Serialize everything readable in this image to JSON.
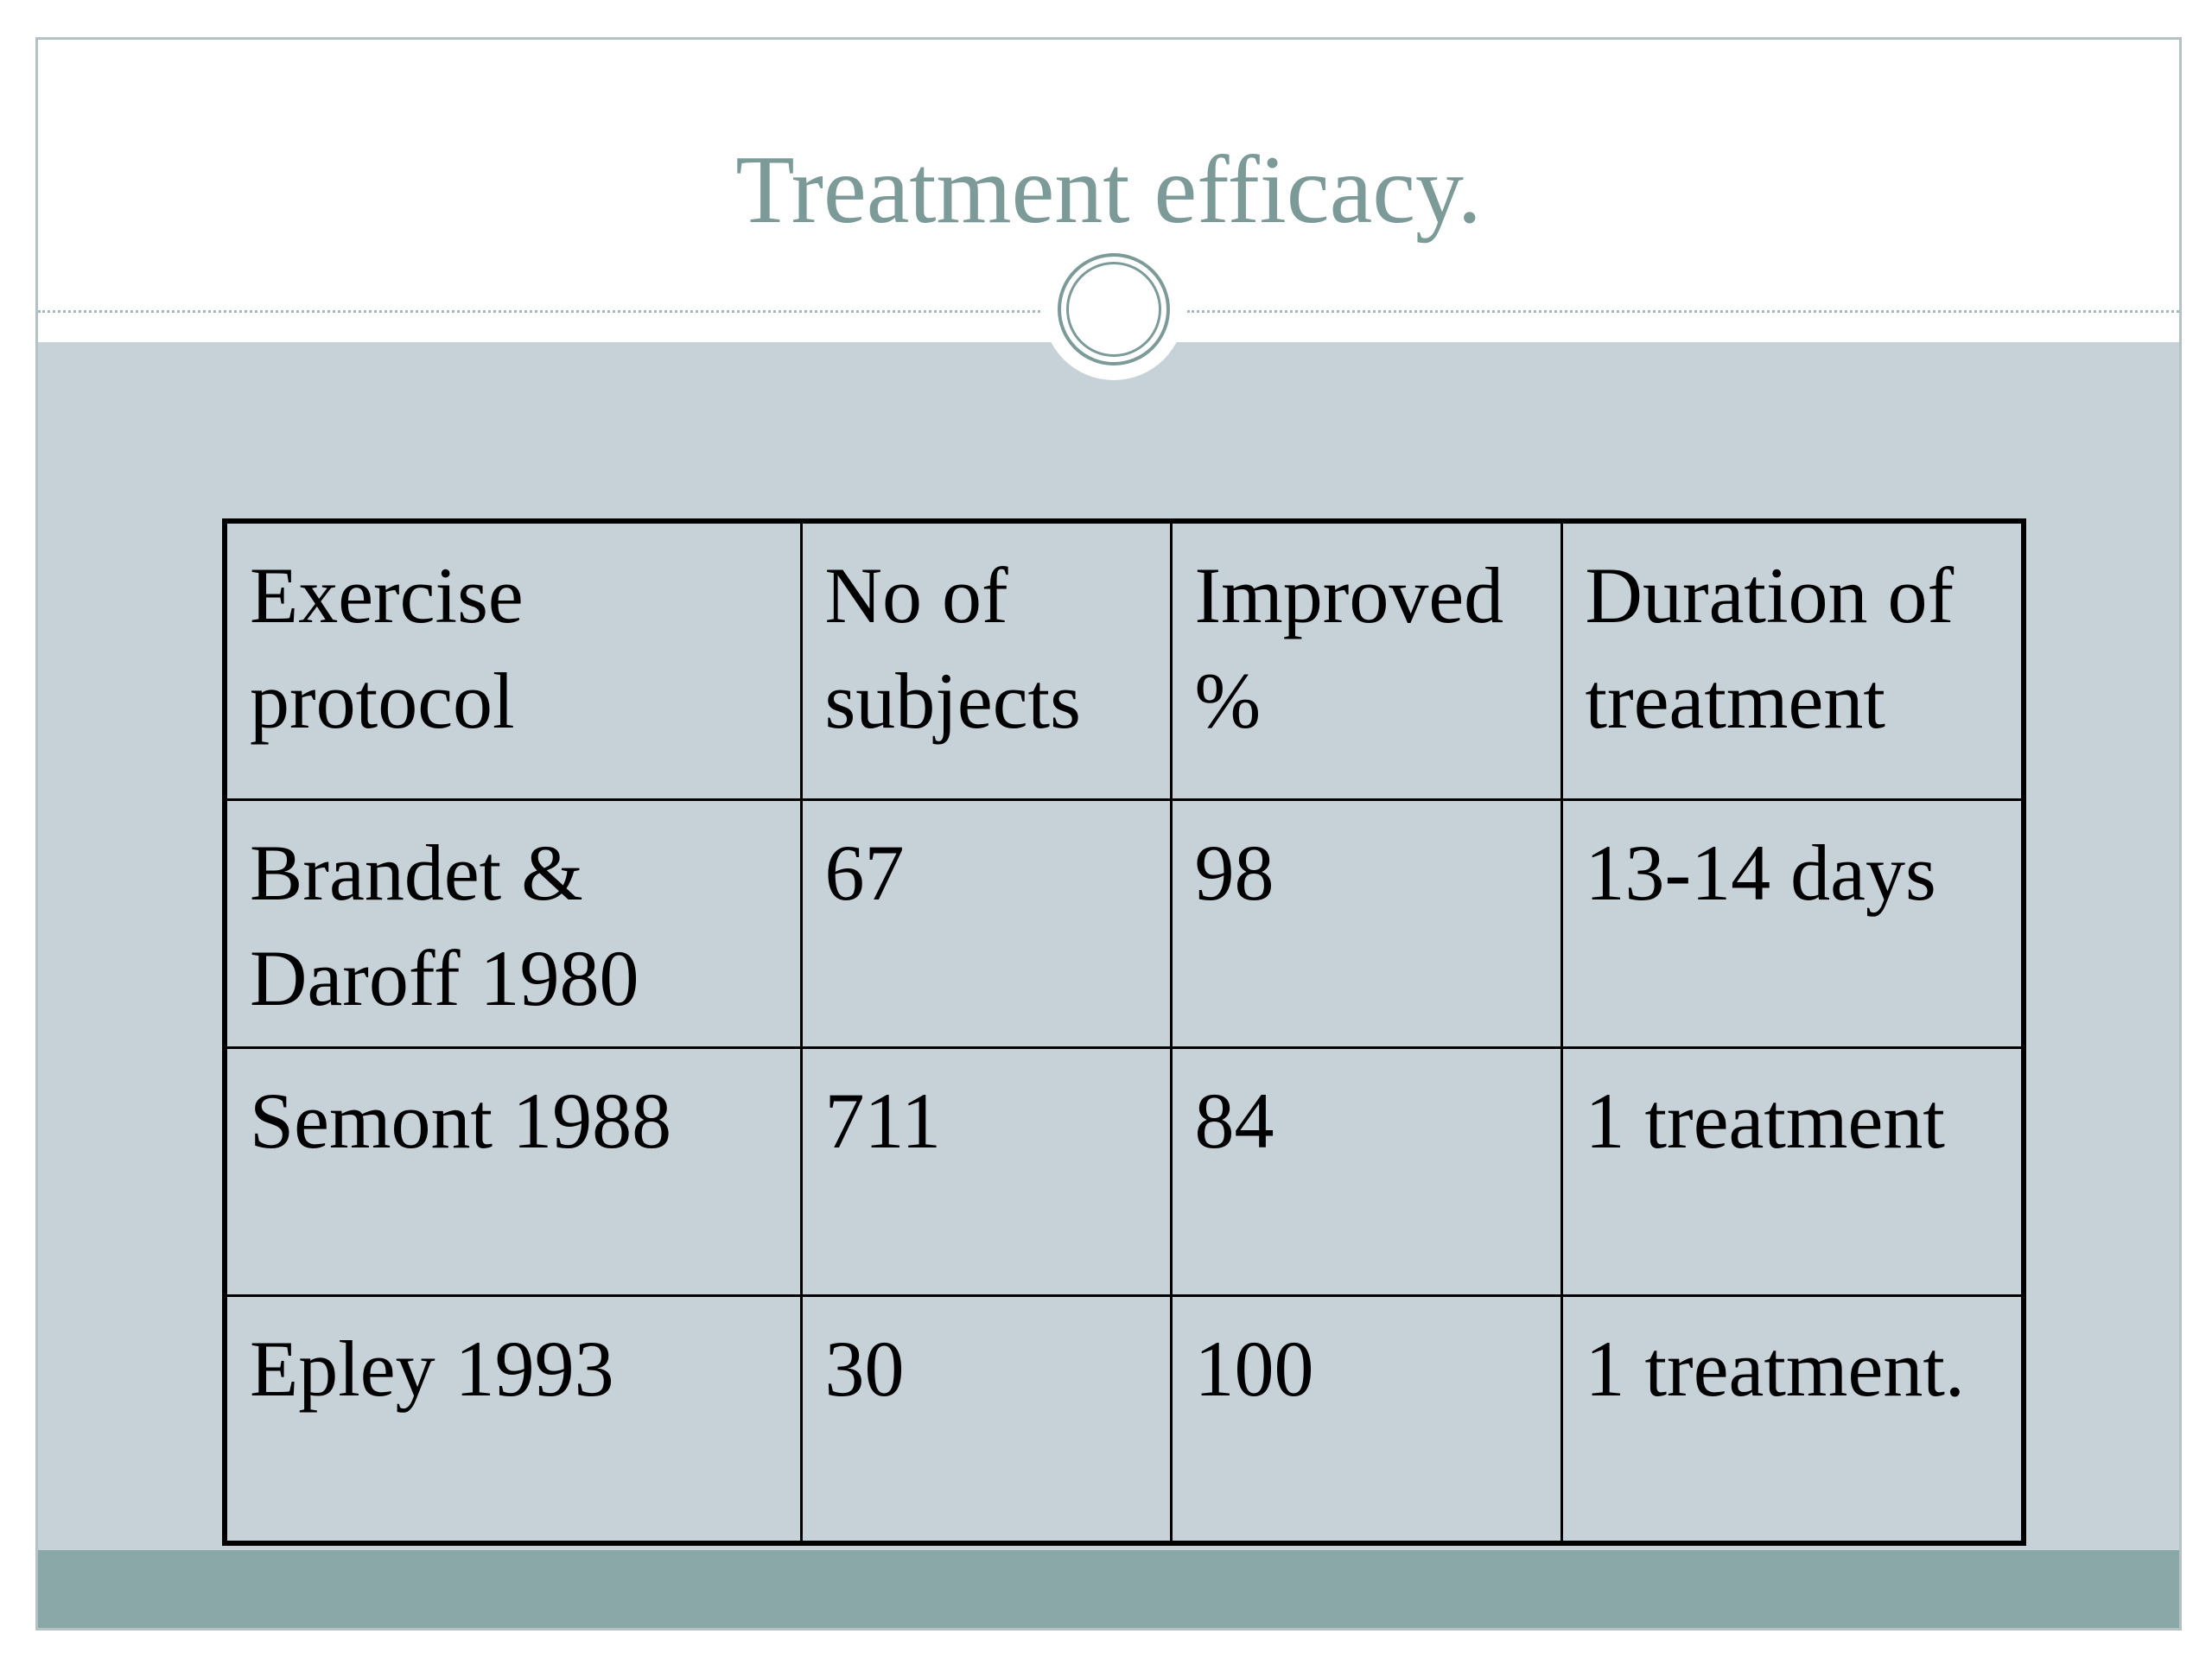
{
  "slide": {
    "title": "Treatment efficacy."
  },
  "table": {
    "headers": [
      "Exercise\nprotocol",
      "No of\nsubjects",
      "Improved\n%",
      "Duration of\ntreatment"
    ],
    "rows": [
      [
        "Brandet &\nDaroff 1980",
        "67",
        "98",
        "13-14 days"
      ],
      [
        "Semont 1988",
        "711",
        "84",
        "1 treatment"
      ],
      [
        "Epley 1993",
        "30",
        "100",
        "1 treatment."
      ]
    ]
  },
  "colors": {
    "title": "#7c9a98",
    "slide_background": "#c6d1d8",
    "footer_band": "#8aa8a8",
    "table_border": "#000000"
  }
}
